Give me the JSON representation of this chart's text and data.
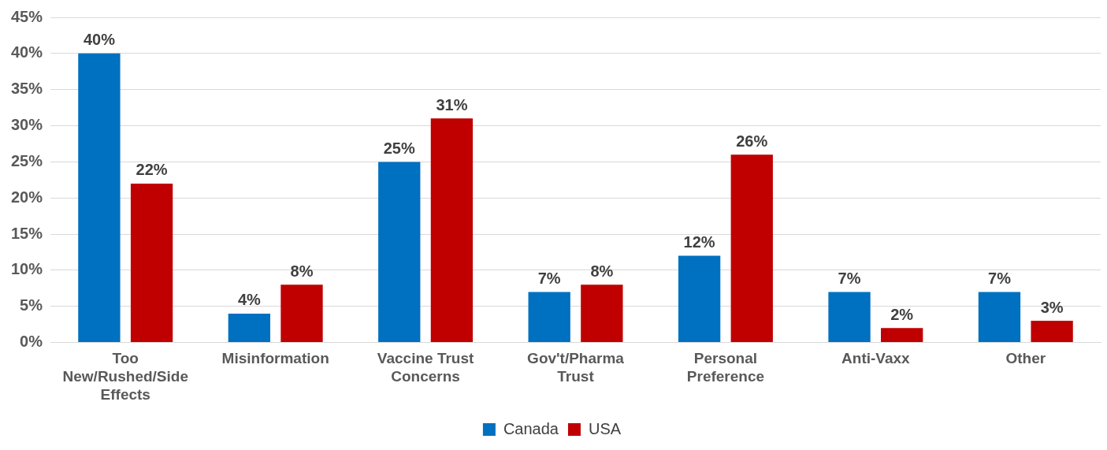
{
  "chart_data": {
    "type": "bar",
    "categories": [
      "Too New/Rushed/Side Effects",
      "Misinformation",
      "Vaccine Trust Concerns",
      "Gov't/Pharma Trust",
      "Personal Preference",
      "Anti-Vaxx",
      "Other"
    ],
    "series": [
      {
        "name": "Canada",
        "color": "#0070c0",
        "values": [
          40,
          4,
          25,
          7,
          12,
          7,
          7
        ],
        "value_labels": [
          "40%",
          "4%",
          "25%",
          "7%",
          "12%",
          "7%",
          "7%"
        ]
      },
      {
        "name": "USA",
        "color": "#c00000",
        "values": [
          22,
          8,
          31,
          8,
          26,
          2,
          3
        ],
        "value_labels": [
          "22%",
          "8%",
          "31%",
          "8%",
          "26%",
          "2%",
          "3%"
        ]
      }
    ],
    "ylim": [
      0,
      45
    ],
    "yticks": [
      {
        "value": 0,
        "label": "0%"
      },
      {
        "value": 5,
        "label": "5%"
      },
      {
        "value": 10,
        "label": "10%"
      },
      {
        "value": 15,
        "label": "15%"
      },
      {
        "value": 20,
        "label": "20%"
      },
      {
        "value": 25,
        "label": "25%"
      },
      {
        "value": 30,
        "label": "30%"
      },
      {
        "value": 35,
        "label": "35%"
      },
      {
        "value": 40,
        "label": "40%"
      },
      {
        "value": 45,
        "label": "45%"
      }
    ],
    "grid": "y",
    "legend": "bottom"
  }
}
